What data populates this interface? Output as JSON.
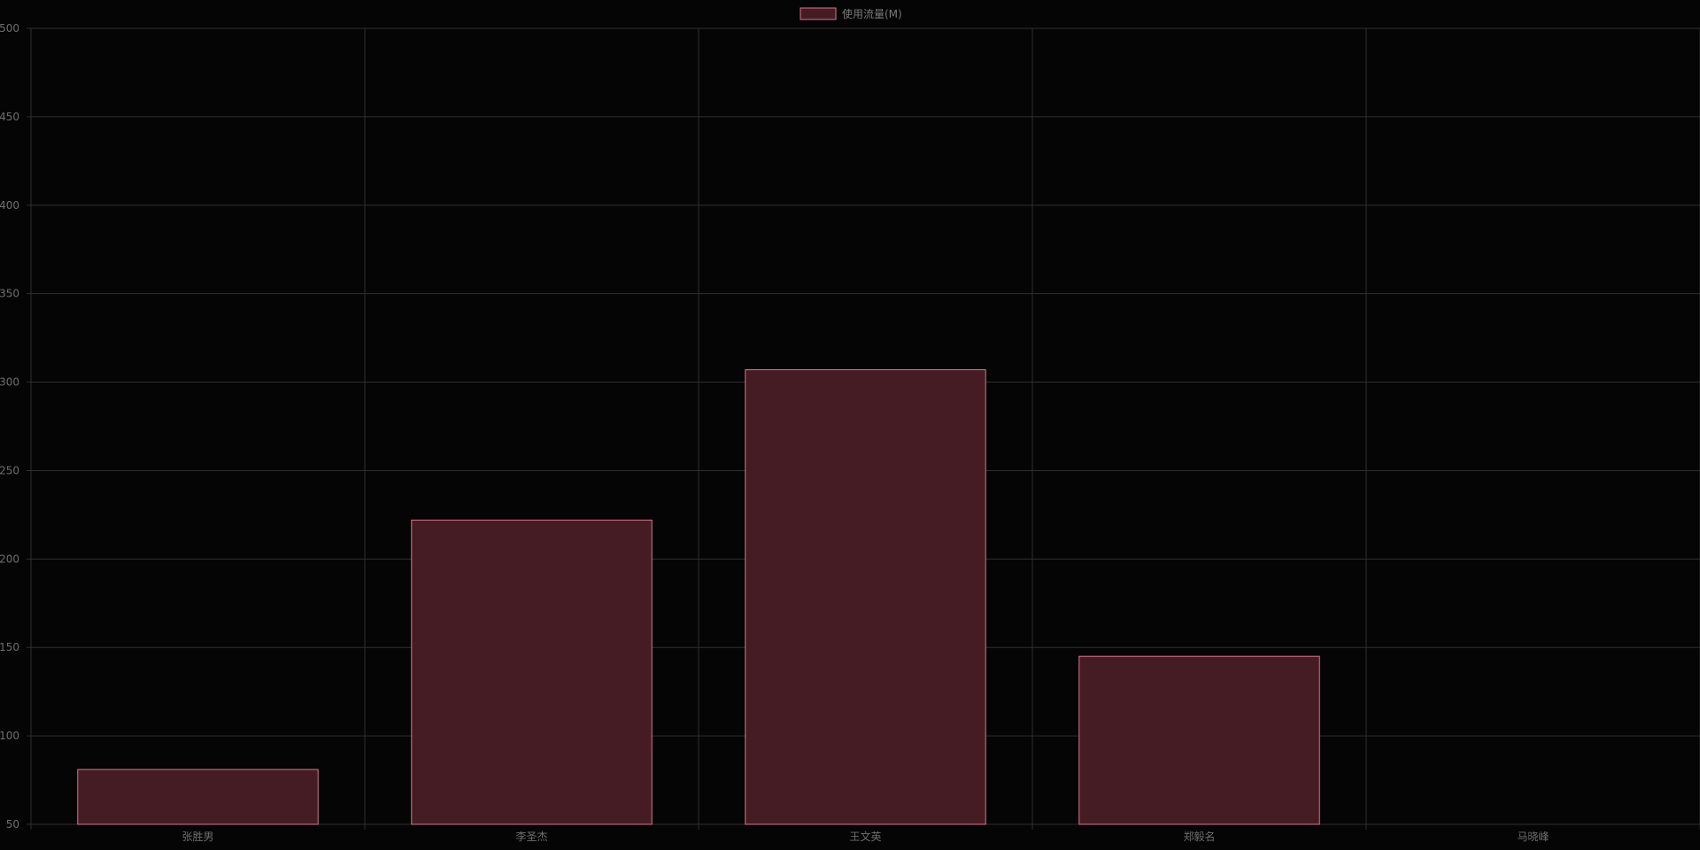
{
  "chart_data": {
    "type": "bar",
    "categories": [
      "张胜男",
      "李圣杰",
      "王文英",
      "郑毅名",
      "马晓峰"
    ],
    "series": [
      {
        "name": "使用流量(M)",
        "values": [
          81,
          222,
          307,
          145,
          null
        ]
      }
    ],
    "ylim": [
      50,
      500
    ],
    "yticks": [
      "50",
      "100",
      "150",
      "200",
      "250",
      "300",
      "350",
      "400",
      "450",
      "500"
    ],
    "legend_position": "top-center",
    "grid": true,
    "colors": {
      "background": "#050505",
      "bar_fill": "#451c24",
      "bar_border": "#d8758e",
      "grid": "#2f2f2f",
      "text": "#6e6e6e"
    }
  }
}
